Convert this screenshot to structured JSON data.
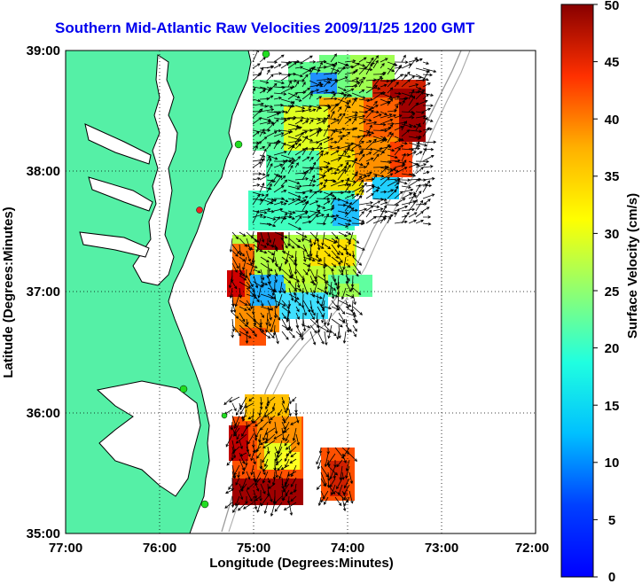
{
  "title": "Southern Mid-Atlantic Raw Velocities 2009/11/25 1200 GMT",
  "axes": {
    "xlabel": "Longitude (Degrees:Minutes)",
    "ylabel": "Latitude (Degrees:Minutes)",
    "x_ticks": [
      "77:00",
      "76:00",
      "75:00",
      "74:00",
      "73:00",
      "72:00"
    ],
    "y_ticks": [
      "39:00",
      "38:00",
      "37:00",
      "36:00",
      "35:00"
    ],
    "xlim": [
      -77,
      -72
    ],
    "ylim": [
      35,
      39
    ],
    "grid": true
  },
  "colorbar": {
    "label": "Surface Velocity (cm/s)",
    "ticks": [
      "50",
      "45",
      "40",
      "35",
      "30",
      "25",
      "20",
      "15",
      "10",
      "5",
      "0"
    ],
    "range": [
      0,
      50
    ],
    "colormap": "jet"
  },
  "colors": {
    "land": "#55f0a6",
    "coast": "#000000",
    "title": "#0000ee",
    "station": "#22dd22",
    "station_alt": "#ee2222",
    "isobath": "#999999"
  },
  "stations_count_shown": 6
}
